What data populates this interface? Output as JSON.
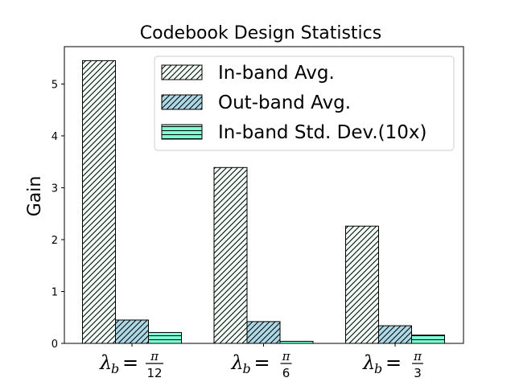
{
  "chart_data": {
    "type": "bar",
    "title": "Codebook Design Statistics",
    "xlabel": "",
    "ylabel": "Gain",
    "ylim": [
      0,
      5.72
    ],
    "yticks": [
      0,
      1,
      2,
      3,
      4,
      5
    ],
    "ytick_labels": [
      "0",
      "1",
      "2",
      "3",
      "4",
      "5"
    ],
    "categories": [
      {
        "symbol": "λ",
        "subscript": "b",
        "equals": "=",
        "numerator": "π",
        "denominator": "12"
      },
      {
        "symbol": "λ",
        "subscript": "b",
        "equals": "=",
        "numerator": "π",
        "denominator": "6"
      },
      {
        "symbol": "λ",
        "subscript": "b",
        "equals": "=",
        "numerator": "π",
        "denominator": "3"
      }
    ],
    "series": [
      {
        "name": "In-band Avg.",
        "values": [
          5.45,
          3.39,
          2.26
        ],
        "color": "#f2fcf7",
        "hatch": "diagonal"
      },
      {
        "name": "Out-band Avg.",
        "values": [
          0.45,
          0.42,
          0.34
        ],
        "color": "#add8e6",
        "hatch": "diagonal"
      },
      {
        "name": "In-band Std. Dev.(10x)",
        "values": [
          0.21,
          0.04,
          0.16
        ],
        "color": "#7fffd4",
        "hatch": "horizontal"
      }
    ],
    "legend_position": "top-right",
    "grid": false
  }
}
